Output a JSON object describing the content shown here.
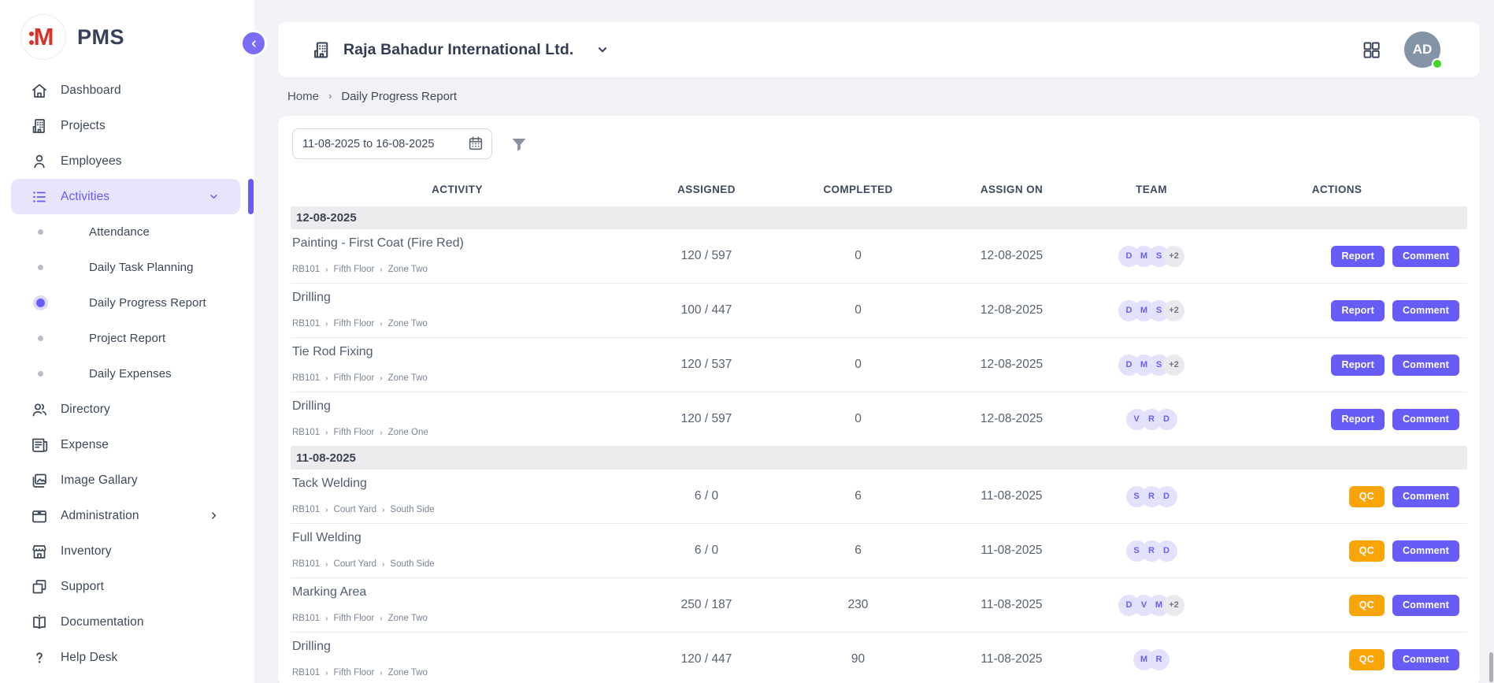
{
  "colors": {
    "accent": "#675CF6",
    "accent_soft": "#E7E4FC",
    "collapse_bg": "#7A6CF7",
    "warning": "#F9A407",
    "success": "#43D62C",
    "avatar_bg": "#8494A7",
    "badge_bg": "#E3E1FB",
    "badge_text": "#6A5FF2",
    "muted_badge_bg": "#E9E9EE",
    "muted_badge_text": "#6F7784",
    "group_bg": "#ECECEF",
    "divider": "#EAEAEF",
    "page_bg": "#F2F2F6",
    "input_border": "#D4D8E0",
    "logo_red": "#D8322C",
    "text_dark": "#37425A"
  },
  "sidebar": {
    "logo_monogram": "M",
    "logo_text": "PMS",
    "items": [
      {
        "label": "Dashboard",
        "icon": "home"
      },
      {
        "label": "Projects",
        "icon": "building"
      },
      {
        "label": "Employees",
        "icon": "person"
      },
      {
        "label": "Activities",
        "icon": "list",
        "active": true,
        "chevron": "down"
      },
      {
        "label": "Attendance",
        "sub": true
      },
      {
        "label": "Daily Task Planning",
        "sub": true
      },
      {
        "label": "Daily Progress Report",
        "sub": true,
        "active": true
      },
      {
        "label": "Project Report",
        "sub": true
      },
      {
        "label": "Daily Expenses",
        "sub": true
      },
      {
        "label": "Directory",
        "icon": "people"
      },
      {
        "label": "Expense",
        "icon": "receipt"
      },
      {
        "label": "Image Gallary",
        "icon": "gallery"
      },
      {
        "label": "Administration",
        "icon": "archive",
        "chevron": "right"
      },
      {
        "label": "Inventory",
        "icon": "store"
      },
      {
        "label": "Support",
        "icon": "copy"
      },
      {
        "label": "Documentation",
        "icon": "book"
      },
      {
        "label": "Help Desk",
        "icon": "help"
      }
    ]
  },
  "header": {
    "company_name": "Raja Bahadur International Ltd.",
    "avatar_initials": "AD"
  },
  "breadcrumb": {
    "home": "Home",
    "current": "Daily Progress Report"
  },
  "filters": {
    "date_range": "11-08-2025 to 16-08-2025"
  },
  "table": {
    "columns": [
      "ACTIVITY",
      "ASSIGNED",
      "COMPLETED",
      "ASSIGN ON",
      "TEAM",
      "ACTIONS"
    ],
    "groups": [
      {
        "date": "12-08-2025",
        "rows": [
          {
            "activity": "Painting - First Coat (Fire Red)",
            "path": [
              "RB101",
              "Fifth Floor",
              "Zone Two"
            ],
            "assigned": "120 / 597",
            "completed": "0",
            "assign_on": "12-08-2025",
            "team": [
              {
                "text": "D"
              },
              {
                "text": "M"
              },
              {
                "text": "S"
              },
              {
                "text": "+2",
                "muted": true
              }
            ],
            "actions": [
              {
                "label": "Report",
                "variant": "primary"
              },
              {
                "label": "Comment",
                "variant": "primary"
              }
            ]
          },
          {
            "activity": "Drilling",
            "path": [
              "RB101",
              "Fifth Floor",
              "Zone Two"
            ],
            "assigned": "100 / 447",
            "completed": "0",
            "assign_on": "12-08-2025",
            "team": [
              {
                "text": "D"
              },
              {
                "text": "M"
              },
              {
                "text": "S"
              },
              {
                "text": "+2",
                "muted": true
              }
            ],
            "actions": [
              {
                "label": "Report",
                "variant": "primary"
              },
              {
                "label": "Comment",
                "variant": "primary"
              }
            ]
          },
          {
            "activity": "Tie Rod Fixing",
            "path": [
              "RB101",
              "Fifth Floor",
              "Zone Two"
            ],
            "assigned": "120 / 537",
            "completed": "0",
            "assign_on": "12-08-2025",
            "team": [
              {
                "text": "D"
              },
              {
                "text": "M"
              },
              {
                "text": "S"
              },
              {
                "text": "+2",
                "muted": true
              }
            ],
            "actions": [
              {
                "label": "Report",
                "variant": "primary"
              },
              {
                "label": "Comment",
                "variant": "primary"
              }
            ]
          },
          {
            "activity": "Drilling",
            "path": [
              "RB101",
              "Fifth Floor",
              "Zone One"
            ],
            "assigned": "120 / 597",
            "completed": "0",
            "assign_on": "12-08-2025",
            "team": [
              {
                "text": "V"
              },
              {
                "text": "R"
              },
              {
                "text": "D"
              }
            ],
            "actions": [
              {
                "label": "Report",
                "variant": "primary"
              },
              {
                "label": "Comment",
                "variant": "primary"
              }
            ]
          }
        ]
      },
      {
        "date": "11-08-2025",
        "rows": [
          {
            "activity": "Tack Welding",
            "path": [
              "RB101",
              "Court Yard",
              "South Side"
            ],
            "assigned": "6 / 0",
            "completed": "6",
            "assign_on": "11-08-2025",
            "team": [
              {
                "text": "S"
              },
              {
                "text": "R"
              },
              {
                "text": "D"
              }
            ],
            "actions": [
              {
                "label": "QC",
                "variant": "warning"
              },
              {
                "label": "Comment",
                "variant": "primary"
              }
            ]
          },
          {
            "activity": "Full Welding",
            "path": [
              "RB101",
              "Court Yard",
              "South Side"
            ],
            "assigned": "6 / 0",
            "completed": "6",
            "assign_on": "11-08-2025",
            "team": [
              {
                "text": "S"
              },
              {
                "text": "R"
              },
              {
                "text": "D"
              }
            ],
            "actions": [
              {
                "label": "QC",
                "variant": "warning"
              },
              {
                "label": "Comment",
                "variant": "primary"
              }
            ]
          },
          {
            "activity": "Marking Area",
            "path": [
              "RB101",
              "Fifth Floor",
              "Zone Two"
            ],
            "assigned": "250 / 187",
            "completed": "230",
            "assign_on": "11-08-2025",
            "team": [
              {
                "text": "D"
              },
              {
                "text": "V"
              },
              {
                "text": "M"
              },
              {
                "text": "+2",
                "muted": true
              }
            ],
            "actions": [
              {
                "label": "QC",
                "variant": "warning"
              },
              {
                "label": "Comment",
                "variant": "primary"
              }
            ]
          },
          {
            "activity": "Drilling",
            "path": [
              "RB101",
              "Fifth Floor",
              "Zone Two"
            ],
            "assigned": "120 / 447",
            "completed": "90",
            "assign_on": "11-08-2025",
            "team": [
              {
                "text": "M"
              },
              {
                "text": "R"
              }
            ],
            "actions": [
              {
                "label": "QC",
                "variant": "warning"
              },
              {
                "label": "Comment",
                "variant": "primary"
              }
            ]
          }
        ]
      }
    ]
  }
}
